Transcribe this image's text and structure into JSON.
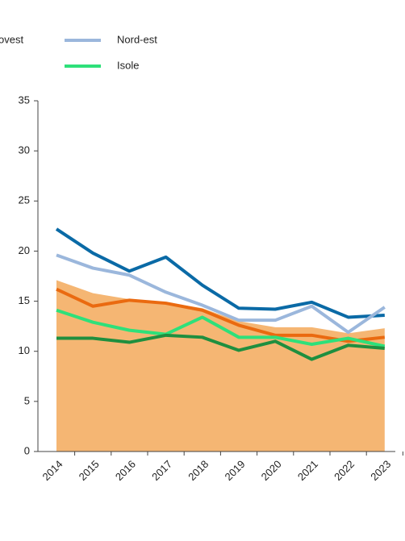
{
  "chart_data": {
    "type": "line",
    "categories": [
      "2014",
      "2015",
      "2016",
      "2017",
      "2018",
      "2019",
      "2020",
      "2021",
      "2022",
      "2023"
    ],
    "area": {
      "color": "#f5b673",
      "values": [
        17.1,
        15.8,
        15.2,
        14.9,
        14.3,
        13.0,
        12.4,
        12.4,
        11.8,
        12.3
      ]
    },
    "series": [
      {
        "name": "ovest",
        "color": "#0a6aa6",
        "values": [
          22.2,
          19.8,
          18.0,
          19.4,
          16.6,
          14.3,
          14.2,
          14.9,
          13.4,
          13.6
        ],
        "legend": false
      },
      {
        "name": "Nord-est",
        "color": "#9bb7dc",
        "values": [
          19.6,
          18.3,
          17.6,
          15.9,
          14.6,
          13.1,
          13.1,
          14.5,
          11.9,
          14.4
        ],
        "legend": true
      },
      {
        "color": "#ea6a10",
        "values": [
          16.2,
          14.5,
          15.1,
          14.8,
          14.1,
          12.6,
          11.6,
          11.6,
          11.0,
          11.4
        ]
      },
      {
        "name": "Isole",
        "color": "#2ee07a",
        "values": [
          14.1,
          12.9,
          12.1,
          11.7,
          13.4,
          11.4,
          11.4,
          10.7,
          11.3,
          10.5
        ],
        "legend": true
      },
      {
        "color": "#1f8f3f",
        "values": [
          11.3,
          11.3,
          10.9,
          11.6,
          11.4,
          10.1,
          11.0,
          9.2,
          10.6,
          10.3
        ]
      }
    ],
    "ylim": [
      0,
      35
    ],
    "yticks": [
      0,
      5,
      10,
      15,
      20,
      25,
      30,
      35
    ]
  }
}
